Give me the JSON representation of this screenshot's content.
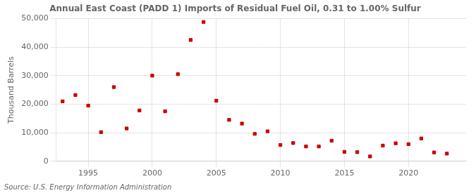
{
  "chart_data": {
    "type": "scatter",
    "title": "Annual East Coast (PADD 1) Imports of Residual Fuel Oil, 0.31 to 1.00% Sulfur",
    "ylabel": "Thousand Barrels",
    "source": "Source: U.S. Energy Information Administration",
    "x": [
      1993,
      1994,
      1995,
      1996,
      1997,
      1998,
      1999,
      2000,
      2001,
      2002,
      2003,
      2004,
      2005,
      2006,
      2007,
      2008,
      2009,
      2010,
      2011,
      2012,
      2013,
      2014,
      2015,
      2016,
      2017,
      2018,
      2019,
      2020,
      2021,
      2022,
      2023
    ],
    "values": [
      21000,
      23200,
      19500,
      10200,
      26000,
      11500,
      17800,
      30000,
      17500,
      30500,
      42500,
      48800,
      21200,
      14500,
      13200,
      9600,
      10500,
      5700,
      6400,
      5200,
      5200,
      7200,
      3300,
      3200,
      1700,
      5500,
      6300,
      6000,
      8000,
      3100,
      2700
    ],
    "color": "#cc0000",
    "marker": "square",
    "xlim": [
      1992.5,
      2024.5
    ],
    "xticks": [
      1995,
      2000,
      2005,
      2010,
      2015,
      2020
    ],
    "ylim": [
      0,
      50000
    ],
    "yticks": [
      0,
      {
        "value": 10000,
        "label": "10,000"
      },
      {
        "value": 20000,
        "label": "20,000"
      },
      {
        "value": 30000,
        "label": "30,000"
      },
      {
        "value": 40000,
        "label": "40,000"
      },
      {
        "value": 50000,
        "label": "50,000"
      }
    ],
    "grid": true
  }
}
